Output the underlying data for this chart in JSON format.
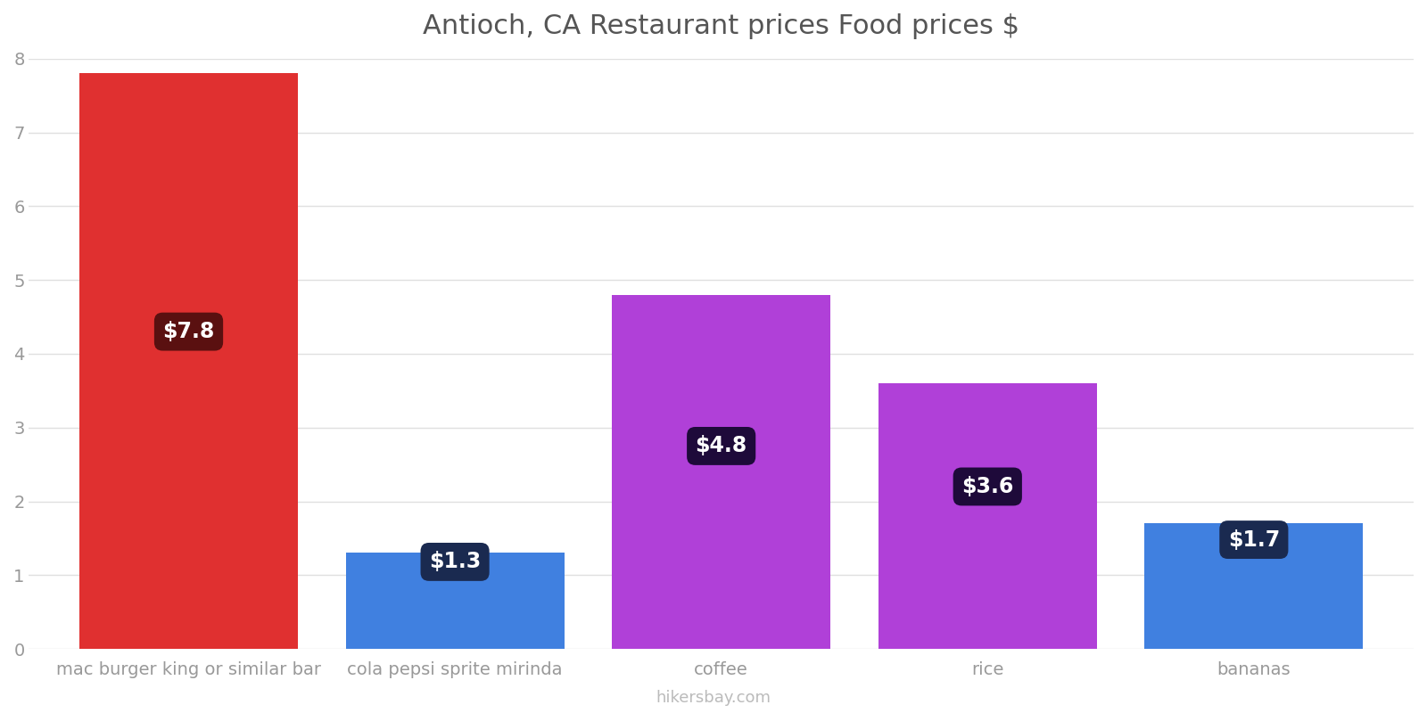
{
  "title": "Antioch, CA Restaurant prices Food prices $",
  "categories": [
    "mac burger king or similar bar",
    "cola pepsi sprite mirinda",
    "coffee",
    "rice",
    "bananas"
  ],
  "values": [
    7.8,
    1.3,
    4.8,
    3.6,
    1.7
  ],
  "bar_colors": [
    "#e03030",
    "#4080e0",
    "#b040d8",
    "#b040d8",
    "#4080e0"
  ],
  "label_box_colors": [
    "#5a1010",
    "#1a2a50",
    "#1e0a3a",
    "#1e0a3a",
    "#1a2a50"
  ],
  "label_box_colors_top": [
    "#606060",
    "#404060",
    "#404060",
    "#404060",
    "#404060"
  ],
  "labels": [
    "$7.8",
    "$1.3",
    "$4.8",
    "$3.6",
    "$1.7"
  ],
  "label_y_positions": [
    4.3,
    1.18,
    2.75,
    2.2,
    1.48
  ],
  "ylim": [
    0,
    8
  ],
  "yticks": [
    0,
    1,
    2,
    3,
    4,
    5,
    6,
    7,
    8
  ],
  "title_fontsize": 22,
  "tick_fontsize": 14,
  "label_fontsize": 17,
  "footer_text": "hikersbay.com",
  "title_color": "#555555",
  "tick_color": "#999999",
  "footer_color": "#bbbbbb",
  "background_color": "#ffffff",
  "grid_color": "#e0e0e0",
  "bar_width": 0.82
}
